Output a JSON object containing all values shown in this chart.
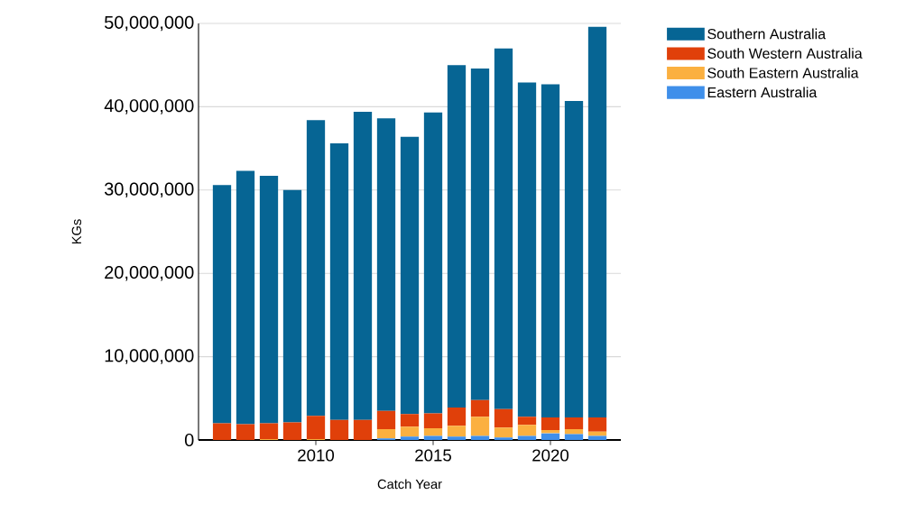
{
  "chart_data": {
    "type": "bar",
    "stacked": true,
    "xlabel": "Catch Year",
    "ylabel": "KGs",
    "x": [
      2006,
      2007,
      2008,
      2009,
      2010,
      2011,
      2012,
      2013,
      2014,
      2015,
      2016,
      2017,
      2018,
      2019,
      2020,
      2021,
      2022
    ],
    "series": [
      {
        "name": "Eastern Australia",
        "color": "#3f8fea",
        "values": [
          0,
          0,
          0,
          0,
          0,
          0,
          0,
          200000,
          400000,
          500000,
          400000,
          500000,
          300000,
          500000,
          800000,
          700000,
          500000
        ]
      },
      {
        "name": "South Eastern Australia",
        "color": "#fbb040",
        "values": [
          0,
          0,
          100000,
          0,
          100000,
          0,
          0,
          1100000,
          1200000,
          900000,
          1300000,
          2300000,
          1200000,
          1300000,
          400000,
          600000,
          500000
        ]
      },
      {
        "name": "South Western Australia",
        "color": "#e0400a",
        "values": [
          2000000,
          1900000,
          1900000,
          2100000,
          2800000,
          2400000,
          2400000,
          2200000,
          1500000,
          1800000,
          2200000,
          2000000,
          2200000,
          1000000,
          1500000,
          1400000,
          1700000
        ]
      },
      {
        "name": "Southern Australia",
        "color": "#066594",
        "values": [
          28600000,
          30400000,
          29700000,
          27900000,
          35500000,
          33200000,
          37000000,
          35100000,
          33300000,
          36100000,
          41100000,
          39800000,
          43300000,
          40100000,
          40000000,
          38000000,
          46900000
        ]
      }
    ],
    "xlim": [
      2005,
      2023
    ],
    "xticks": [
      2010,
      2015,
      2020
    ],
    "ylim": [
      0,
      50000000
    ],
    "yticks": [
      {
        "value": 0,
        "label": "0"
      },
      {
        "value": 10000000,
        "label": "10,000,000"
      },
      {
        "value": 20000000,
        "label": "20,000,000"
      },
      {
        "value": 30000000,
        "label": "30,000,000"
      },
      {
        "value": 40000000,
        "label": "40,000,000"
      },
      {
        "value": 50000000,
        "label": "50,000,000"
      }
    ],
    "grid": "y",
    "legend": "top right"
  }
}
